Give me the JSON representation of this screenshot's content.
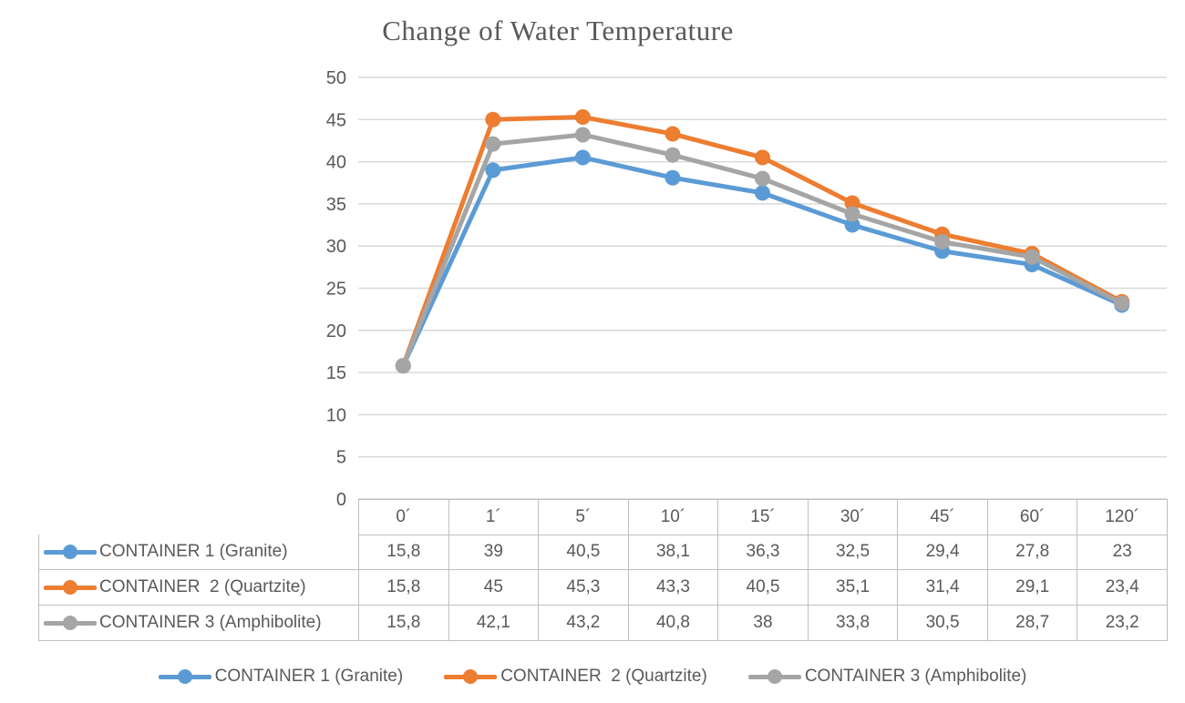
{
  "theme": {
    "background": "#FFFFFF",
    "text_color": "#595959",
    "gridline_color": "#D9D9D9",
    "table_border_color": "#BFBFBF"
  },
  "chart_data": {
    "type": "line",
    "title": "Change of Water Temperature",
    "categories": [
      "0´",
      "1´",
      "5´",
      "10´",
      "15´",
      "30´",
      "45´",
      "60´",
      "120´"
    ],
    "series": [
      {
        "name": "CONTAINER 1 (Granite)",
        "color": "#5B9BD5",
        "values": [
          15.8,
          39,
          40.5,
          38.1,
          36.3,
          32.5,
          29.4,
          27.8,
          23
        ]
      },
      {
        "name": "CONTAINER  2 (Quartzite)",
        "color": "#ED7D31",
        "values": [
          15.8,
          45,
          45.3,
          43.3,
          40.5,
          35.1,
          31.4,
          29.1,
          23.4
        ]
      },
      {
        "name": "CONTAINER 3 (Amphibolite)",
        "color": "#A5A5A5",
        "values": [
          15.8,
          42.1,
          43.2,
          40.8,
          38,
          33.8,
          30.5,
          28.7,
          23.2
        ]
      }
    ],
    "xlabel": "",
    "ylabel": "",
    "ylim": [
      0,
      50
    ],
    "ytick_step": 5,
    "ytick_labels": [
      "50",
      "45",
      "40",
      "35",
      "30",
      "25",
      "20",
      "15",
      "10",
      "5",
      "0"
    ],
    "grid": true,
    "legend_position": "bottom",
    "data_table_shown": true,
    "decimal_separator": ","
  }
}
